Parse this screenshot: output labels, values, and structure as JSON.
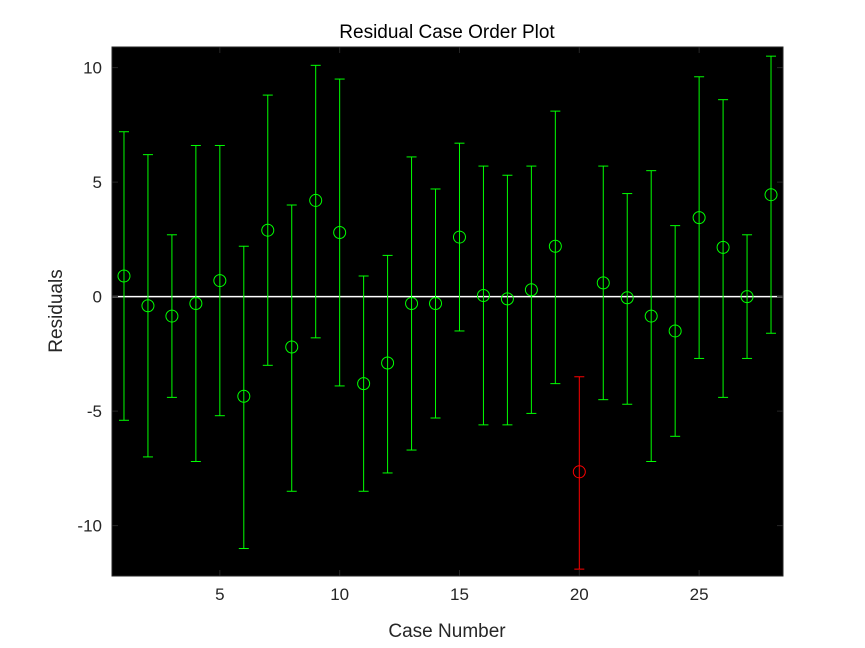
{
  "chart_data": {
    "type": "scatter",
    "title": "Residual Case Order Plot",
    "xlabel": "Case Number",
    "ylabel": "Residuals",
    "xlim": [
      0.5,
      28.5
    ],
    "ylim": [
      -12.2,
      10.9
    ],
    "xticks": [
      5,
      10,
      15,
      20,
      25
    ],
    "xtick_labels": [
      "5",
      "10",
      "15",
      "20",
      "25"
    ],
    "yticks": [
      -10,
      -5,
      0,
      5,
      10
    ],
    "ytick_labels": [
      "-10",
      "-5",
      "0",
      "5",
      "10"
    ],
    "grid": false,
    "background_color": "#000000",
    "zero_line_color": "#ffffff",
    "normal_color": "#00ff00",
    "outlier_color": "#ff0000",
    "points": [
      {
        "case": 1,
        "residual": 0.9,
        "lower": -5.4,
        "upper": 7.2,
        "outlier": false
      },
      {
        "case": 2,
        "residual": -0.4,
        "lower": -7.0,
        "upper": 6.2,
        "outlier": false
      },
      {
        "case": 3,
        "residual": -0.85,
        "lower": -4.4,
        "upper": 2.7,
        "outlier": false
      },
      {
        "case": 4,
        "residual": -0.3,
        "lower": -7.2,
        "upper": 6.6,
        "outlier": false
      },
      {
        "case": 5,
        "residual": 0.7,
        "lower": -5.2,
        "upper": 6.6,
        "outlier": false
      },
      {
        "case": 6,
        "residual": -4.35,
        "lower": -11.0,
        "upper": 2.2,
        "outlier": false
      },
      {
        "case": 7,
        "residual": 2.9,
        "lower": -3.0,
        "upper": 8.8,
        "outlier": false
      },
      {
        "case": 8,
        "residual": -2.2,
        "lower": -8.5,
        "upper": 4.0,
        "outlier": false
      },
      {
        "case": 9,
        "residual": 4.2,
        "lower": -1.8,
        "upper": 10.1,
        "outlier": false
      },
      {
        "case": 10,
        "residual": 2.8,
        "lower": -3.9,
        "upper": 9.5,
        "outlier": false
      },
      {
        "case": 11,
        "residual": -3.8,
        "lower": -8.5,
        "upper": 0.9,
        "outlier": false
      },
      {
        "case": 12,
        "residual": -2.9,
        "lower": -7.7,
        "upper": 1.8,
        "outlier": false
      },
      {
        "case": 13,
        "residual": -0.3,
        "lower": -6.7,
        "upper": 6.1,
        "outlier": false
      },
      {
        "case": 14,
        "residual": -0.3,
        "lower": -5.3,
        "upper": 4.7,
        "outlier": false
      },
      {
        "case": 15,
        "residual": 2.6,
        "lower": -1.5,
        "upper": 6.7,
        "outlier": false
      },
      {
        "case": 16,
        "residual": 0.05,
        "lower": -5.6,
        "upper": 5.7,
        "outlier": false
      },
      {
        "case": 17,
        "residual": -0.1,
        "lower": -5.6,
        "upper": 5.3,
        "outlier": false
      },
      {
        "case": 18,
        "residual": 0.3,
        "lower": -5.1,
        "upper": 5.7,
        "outlier": false
      },
      {
        "case": 19,
        "residual": 2.2,
        "lower": -3.8,
        "upper": 8.1,
        "outlier": false
      },
      {
        "case": 20,
        "residual": -7.65,
        "lower": -11.9,
        "upper": -3.5,
        "outlier": true
      },
      {
        "case": 21,
        "residual": 0.6,
        "lower": -4.5,
        "upper": 5.7,
        "outlier": false
      },
      {
        "case": 22,
        "residual": -0.05,
        "lower": -4.7,
        "upper": 4.5,
        "outlier": false
      },
      {
        "case": 23,
        "residual": -0.85,
        "lower": -7.2,
        "upper": 5.5,
        "outlier": false
      },
      {
        "case": 24,
        "residual": -1.5,
        "lower": -6.1,
        "upper": 3.1,
        "outlier": false
      },
      {
        "case": 25,
        "residual": 3.45,
        "lower": -2.7,
        "upper": 9.6,
        "outlier": false
      },
      {
        "case": 26,
        "residual": 2.15,
        "lower": -4.4,
        "upper": 8.6,
        "outlier": false
      },
      {
        "case": 27,
        "residual": 0.0,
        "lower": -2.7,
        "upper": 2.7,
        "outlier": false
      },
      {
        "case": 28,
        "residual": 4.45,
        "lower": -1.6,
        "upper": 10.5,
        "outlier": false
      }
    ]
  }
}
